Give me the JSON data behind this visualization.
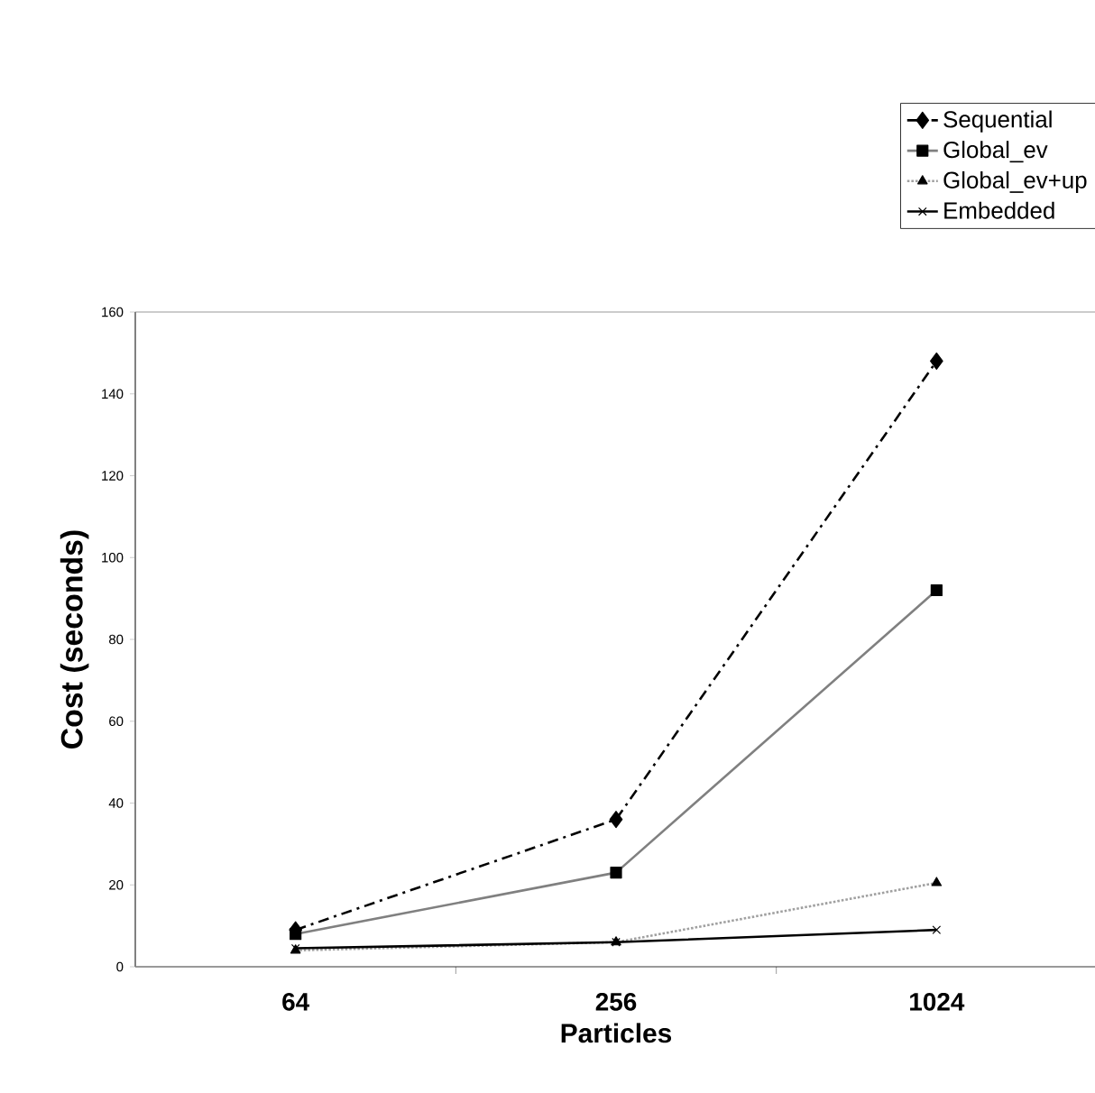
{
  "chart_data": {
    "type": "line",
    "xlabel": "Particles",
    "ylabel": "Cost (seconds)",
    "categories": [
      "64",
      "256",
      "1024"
    ],
    "series": [
      {
        "name": "Sequential",
        "color": "#000000",
        "marker": "diamond",
        "line_style": "dashed",
        "values": [
          9,
          36,
          148
        ]
      },
      {
        "name": "Global_ev",
        "color": "#808080",
        "marker": "square",
        "line_style": "solid",
        "values": [
          8,
          23,
          92
        ]
      },
      {
        "name": "Global_ev+up",
        "color": "#a0a0a0",
        "marker": "triangle",
        "line_style": "dotted",
        "values": [
          4,
          6,
          20.5
        ]
      },
      {
        "name": "Embedded",
        "color": "#000000",
        "marker": "cross",
        "line_style": "solid",
        "values": [
          4.5,
          6,
          9
        ]
      }
    ],
    "ylim": [
      0,
      160
    ],
    "yticks": [
      0,
      20,
      40,
      60,
      80,
      100,
      120,
      140,
      160
    ],
    "legend": "top right",
    "grid": false
  }
}
